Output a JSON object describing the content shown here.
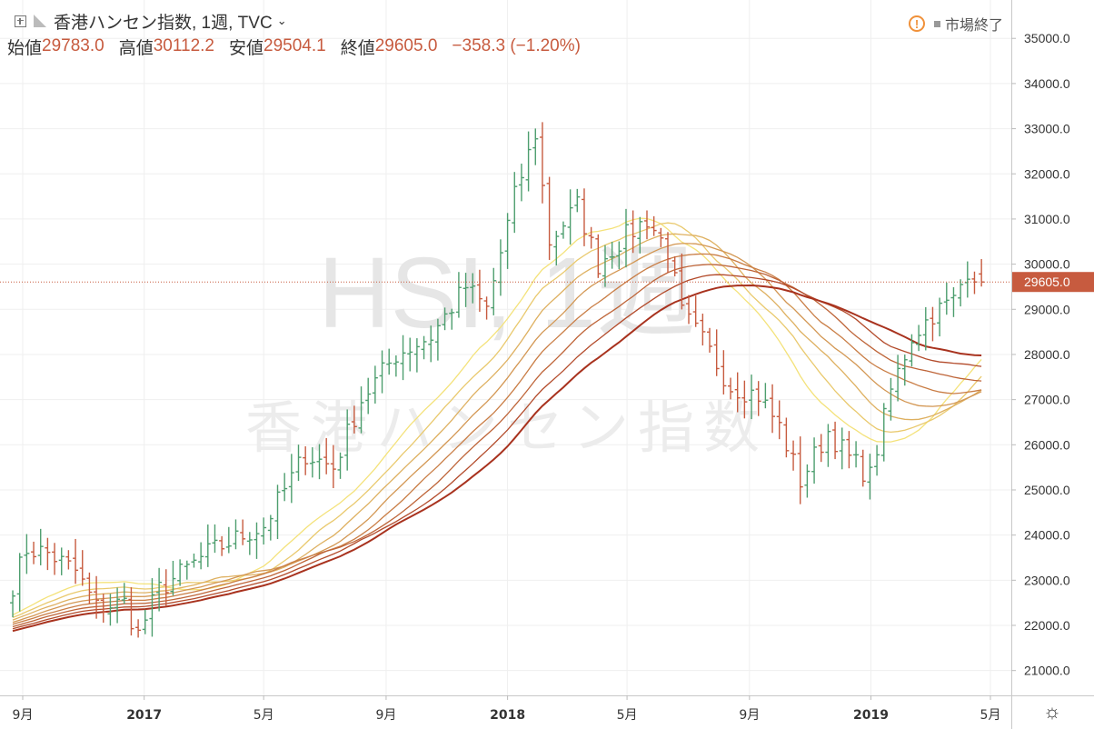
{
  "header": {
    "title": "香港ハンセン指数, 1週, TVC",
    "ohlc": [
      {
        "label": "始値",
        "value": "29783.0"
      },
      {
        "label": "高値",
        "value": "30112.2"
      },
      {
        "label": "安値",
        "value": "29504.1"
      },
      {
        "label": "終値",
        "value": "29605.0"
      }
    ],
    "change": "−358.3 (−1.20%)"
  },
  "status": {
    "text": "市場終了",
    "warn_icon": "!"
  },
  "watermark": {
    "symbol": "HSI, 1週",
    "name": "香港ハンセン指数"
  },
  "colors": {
    "up": "#4d9e6e",
    "down": "#c75b3f",
    "price_line": "#c75b3f",
    "ribbon_fast": "#f4e27a",
    "ribbon_slow": "#a8321e"
  },
  "chart_data": {
    "type": "ohlc-bar",
    "interval": "1週",
    "y_ticks": [
      "21000.0",
      "22000.0",
      "23000.0",
      "24000.0",
      "25000.0",
      "26000.0",
      "27000.0",
      "28000.0",
      "29000.0",
      "30000.0",
      "31000.0",
      "32000.0",
      "33000.0",
      "34000.0",
      "35000.0"
    ],
    "ylim": [
      20450,
      35850
    ],
    "x_labels": [
      {
        "label": "9月",
        "date": "2016-09-01",
        "bold": false
      },
      {
        "label": "2017",
        "date": "2017-01-01",
        "bold": true
      },
      {
        "label": "5月",
        "date": "2017-05-01",
        "bold": false
      },
      {
        "label": "9月",
        "date": "2017-09-01",
        "bold": false
      },
      {
        "label": "2018",
        "date": "2018-01-01",
        "bold": true
      },
      {
        "label": "5月",
        "date": "2018-05-01",
        "bold": false
      },
      {
        "label": "9月",
        "date": "2018-09-01",
        "bold": false
      },
      {
        "label": "2019",
        "date": "2019-01-01",
        "bold": true
      },
      {
        "label": "5月",
        "date": "2019-05-01",
        "bold": false
      }
    ],
    "last_price": "29605.0",
    "price_anchors": [
      [
        "2016-08-22",
        22900
      ],
      [
        "2016-09-05",
        23700
      ],
      [
        "2016-09-26",
        23600
      ],
      [
        "2016-10-24",
        23200
      ],
      [
        "2016-11-14",
        22400
      ],
      [
        "2016-12-12",
        22500
      ],
      [
        "2016-12-26",
        21800
      ],
      [
        "2017-01-16",
        22800
      ],
      [
        "2017-03-06",
        23600
      ],
      [
        "2017-04-10",
        24000
      ],
      [
        "2017-05-01",
        24200
      ],
      [
        "2017-06-12",
        25800
      ],
      [
        "2017-07-10",
        25500
      ],
      [
        "2017-08-07",
        27000
      ],
      [
        "2017-09-11",
        28000
      ],
      [
        "2017-10-16",
        28400
      ],
      [
        "2017-11-20",
        29500
      ],
      [
        "2017-12-11",
        29000
      ],
      [
        "2018-01-08",
        31500
      ],
      [
        "2018-01-29",
        32900
      ],
      [
        "2018-02-12",
        30500
      ],
      [
        "2018-03-12",
        31300
      ],
      [
        "2018-04-02",
        30000
      ],
      [
        "2018-04-23",
        30500
      ],
      [
        "2018-05-21",
        31000
      ],
      [
        "2018-06-11",
        30300
      ],
      [
        "2018-06-25",
        28900
      ],
      [
        "2018-07-16",
        28300
      ],
      [
        "2018-08-13",
        27300
      ],
      [
        "2018-09-10",
        27100
      ],
      [
        "2018-10-01",
        26400
      ],
      [
        "2018-10-22",
        25200
      ],
      [
        "2018-11-19",
        26300
      ],
      [
        "2018-12-10",
        25700
      ],
      [
        "2018-12-31",
        25300
      ],
      [
        "2019-01-21",
        27200
      ],
      [
        "2019-02-11",
        28400
      ],
      [
        "2019-03-04",
        28900
      ],
      [
        "2019-03-25",
        29200
      ],
      [
        "2019-04-08",
        29900
      ],
      [
        "2019-04-22",
        29700
      ]
    ],
    "last_bar": {
      "date": "2019-04-22",
      "open": 29783.0,
      "high": 30112.2,
      "low": 29504.1,
      "close": 29605.0
    },
    "ribbon_periods": [
      20,
      25,
      30,
      35,
      40,
      45,
      50,
      55
    ]
  }
}
